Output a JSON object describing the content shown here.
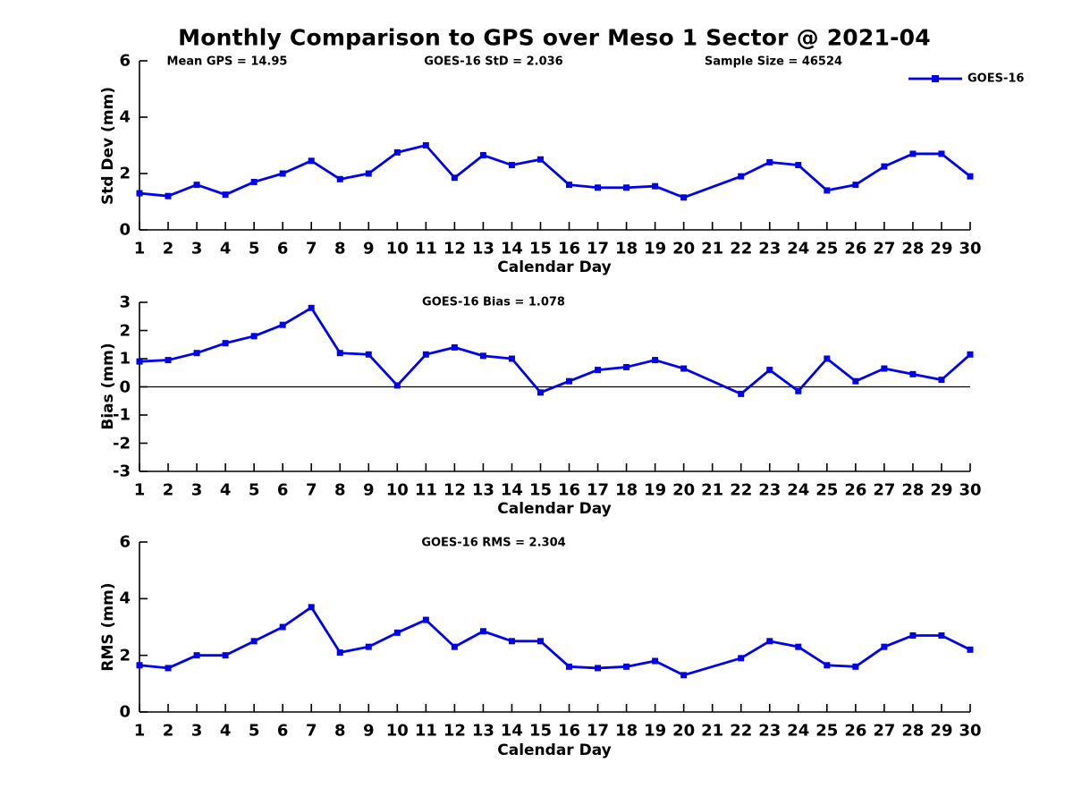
{
  "title": "Monthly Comparison to GPS over Meso 1 Sector @ 2021-04",
  "legend": {
    "label": "GOES-16",
    "color": "#0000ee",
    "marker": "square",
    "position": "top-right"
  },
  "chart_data": [
    {
      "type": "line",
      "panel": "std-dev",
      "annotations": [
        "Mean GPS = 14.95",
        "GOES-16 StD = 2.036",
        "Sample Size = 46524"
      ],
      "xlabel": "Calendar Day",
      "ylabel": "Std Dev (mm)",
      "ylim": [
        0,
        6
      ],
      "yticks": [
        0,
        2,
        4,
        6
      ],
      "xticks": [
        1,
        2,
        3,
        4,
        5,
        6,
        7,
        8,
        9,
        10,
        11,
        12,
        13,
        14,
        15,
        16,
        17,
        18,
        19,
        20,
        21,
        22,
        23,
        24,
        25,
        26,
        27,
        28,
        29,
        30
      ],
      "grid": false,
      "zero_line": false,
      "series": [
        {
          "name": "GOES-16",
          "x": [
            1,
            2,
            3,
            4,
            5,
            6,
            7,
            8,
            9,
            10,
            11,
            12,
            13,
            14,
            15,
            16,
            17,
            18,
            19,
            20,
            22,
            23,
            24,
            25,
            26,
            27,
            28,
            29,
            30
          ],
          "values": [
            1.3,
            1.2,
            1.6,
            1.25,
            1.7,
            2.0,
            2.45,
            1.8,
            2.0,
            2.75,
            3.0,
            1.85,
            2.65,
            2.3,
            2.5,
            1.6,
            1.5,
            1.5,
            1.55,
            1.15,
            1.9,
            2.4,
            2.3,
            1.4,
            1.6,
            2.25,
            2.7,
            2.7,
            1.9
          ]
        }
      ]
    },
    {
      "type": "line",
      "panel": "bias",
      "annotations": [
        "GOES-16 Bias = 1.078"
      ],
      "xlabel": "Calendar Day",
      "ylabel": "Bias (mm)",
      "ylim": [
        -3,
        3
      ],
      "yticks": [
        -3,
        -2,
        -1,
        0,
        1,
        2,
        3
      ],
      "xticks": [
        1,
        2,
        3,
        4,
        5,
        6,
        7,
        8,
        9,
        10,
        11,
        12,
        13,
        14,
        15,
        16,
        17,
        18,
        19,
        20,
        21,
        22,
        23,
        24,
        25,
        26,
        27,
        28,
        29,
        30
      ],
      "grid": false,
      "zero_line": true,
      "series": [
        {
          "name": "GOES-16",
          "x": [
            1,
            2,
            3,
            4,
            5,
            6,
            7,
            8,
            9,
            10,
            11,
            12,
            13,
            14,
            15,
            16,
            17,
            18,
            19,
            20,
            22,
            23,
            24,
            25,
            26,
            27,
            28,
            29,
            30
          ],
          "values": [
            0.9,
            0.95,
            1.2,
            1.55,
            1.8,
            2.2,
            2.8,
            1.2,
            1.15,
            0.05,
            1.15,
            1.4,
            1.1,
            1.0,
            -0.2,
            0.2,
            0.6,
            0.7,
            0.95,
            0.65,
            -0.25,
            0.6,
            -0.15,
            1.0,
            0.2,
            0.65,
            0.45,
            0.25,
            1.15
          ]
        }
      ]
    },
    {
      "type": "line",
      "panel": "rms",
      "annotations": [
        "GOES-16 RMS = 2.304"
      ],
      "xlabel": "Calendar Day",
      "ylabel": "RMS (mm)",
      "ylim": [
        0,
        6
      ],
      "yticks": [
        0,
        2,
        4,
        6
      ],
      "xticks": [
        1,
        2,
        3,
        4,
        5,
        6,
        7,
        8,
        9,
        10,
        11,
        12,
        13,
        14,
        15,
        16,
        17,
        18,
        19,
        20,
        21,
        22,
        23,
        24,
        25,
        26,
        27,
        28,
        29,
        30
      ],
      "grid": false,
      "zero_line": false,
      "series": [
        {
          "name": "GOES-16",
          "x": [
            1,
            2,
            3,
            4,
            5,
            6,
            7,
            8,
            9,
            10,
            11,
            12,
            13,
            14,
            15,
            16,
            17,
            18,
            19,
            20,
            22,
            23,
            24,
            25,
            26,
            27,
            28,
            29,
            30
          ],
          "values": [
            1.65,
            1.55,
            2.0,
            2.0,
            2.5,
            3.0,
            3.7,
            2.1,
            2.3,
            2.8,
            3.25,
            2.3,
            2.85,
            2.5,
            2.5,
            1.6,
            1.55,
            1.6,
            1.8,
            1.3,
            1.9,
            2.5,
            2.3,
            1.65,
            1.6,
            2.3,
            2.7,
            2.7,
            2.2
          ]
        }
      ]
    }
  ]
}
